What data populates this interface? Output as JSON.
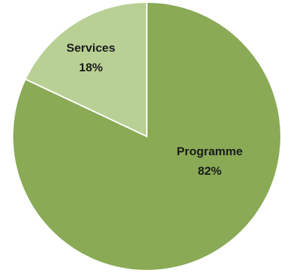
{
  "chart_data": {
    "type": "pie",
    "slices": [
      {
        "label": "Programme",
        "value": 82,
        "value_label": "82%",
        "color": "#8aaa56"
      },
      {
        "label": "Services",
        "value": 18,
        "value_label": "18%",
        "color": "#b9d095"
      }
    ],
    "start_angle": "12 o'clock",
    "direction": "clockwise",
    "legend": "none"
  }
}
